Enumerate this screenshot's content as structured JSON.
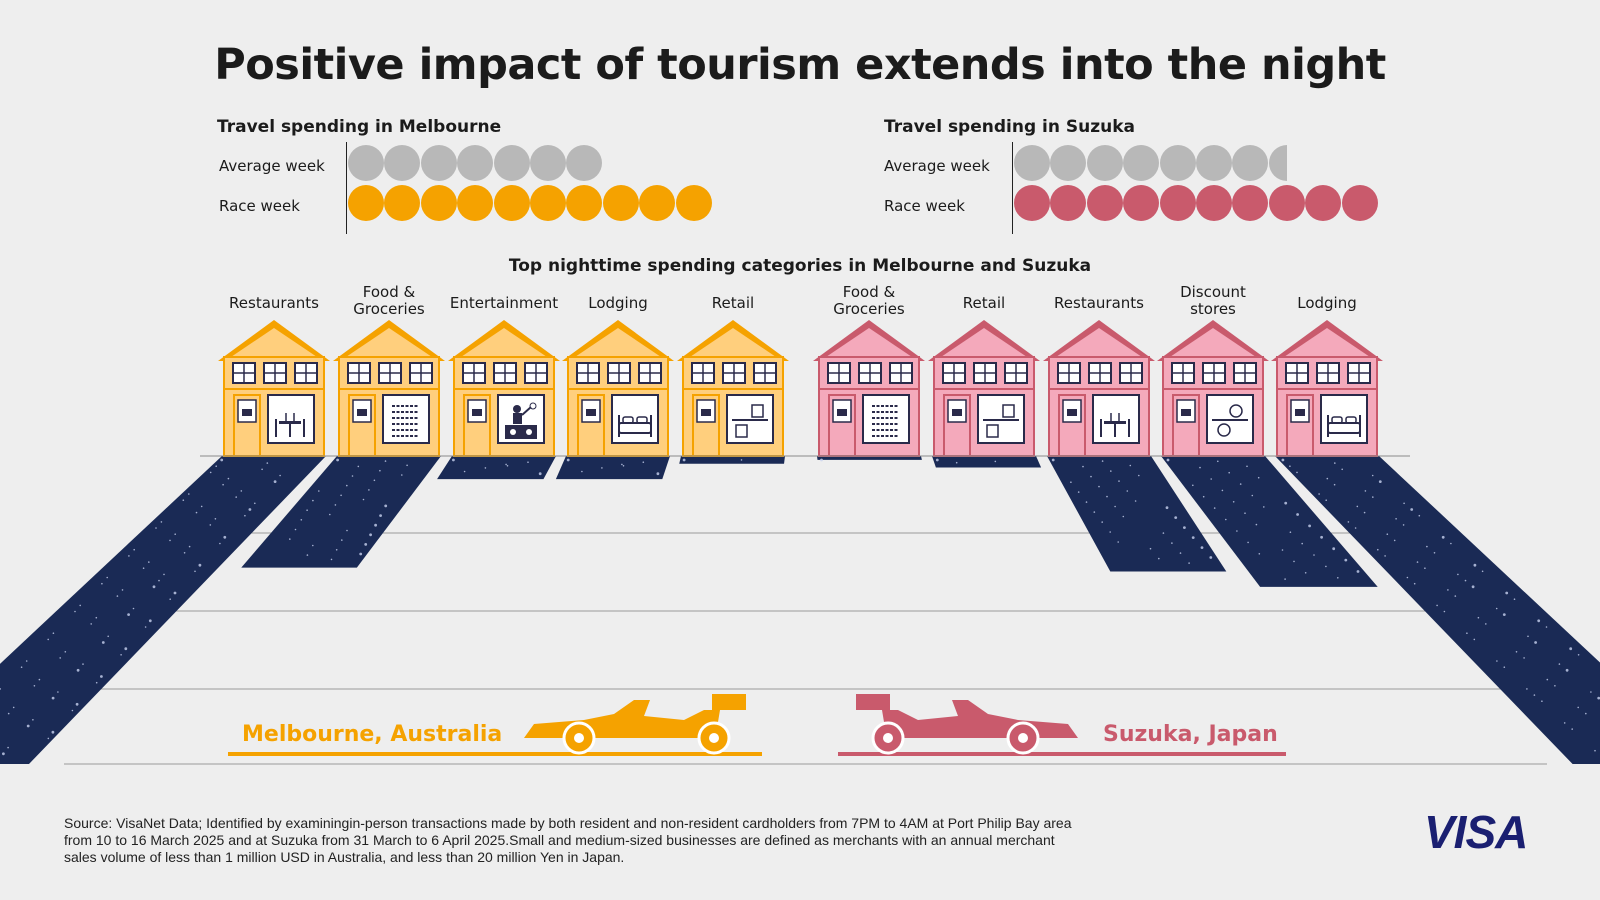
{
  "title": "Positive impact of tourism extends into the night",
  "colors": {
    "melbourne": "#f5a200",
    "suzuka": "#c95a6c",
    "average": "#b8b8b8",
    "night": "#1a2a55",
    "house_orange": "#ffcf7d",
    "house_pink": "#f4a9bb",
    "visa_blue": "#1a1f71"
  },
  "chart_data": [
    {
      "type": "pictogram",
      "title": "Travel spending in Melbourne",
      "categories": [
        "Average week",
        "Race week"
      ],
      "values": [
        7,
        10
      ],
      "unit": "relative spending icons"
    },
    {
      "type": "pictogram",
      "title": "Travel spending in Suzuka",
      "categories": [
        "Average week",
        "Race week"
      ],
      "values": [
        7.5,
        10
      ],
      "unit": "relative spending icons"
    },
    {
      "type": "bar",
      "title": "Top nighttime spending categories in Melbourne and Suzuka",
      "series": [
        {
          "name": "Melbourne, Australia",
          "categories": [
            "Restaurants",
            "Food & Groceries",
            "Entertainment",
            "Lodging",
            "Retail"
          ],
          "values": [
            4,
            1.45,
            0.3,
            0.3,
            0.1
          ],
          "icons": [
            "dining-table-icon",
            "grocery-shelf-icon",
            "dj-icon",
            "bed-icon",
            "shopping-bags-icon"
          ]
        },
        {
          "name": "Suzuka, Japan",
          "categories": [
            "Food & Groceries",
            "Retail",
            "Restaurants",
            "Discount stores",
            "Lodging"
          ],
          "values": [
            0.05,
            0.15,
            1.5,
            1.7,
            4
          ],
          "icons": [
            "grocery-shelf-icon",
            "shopping-bags-icon",
            "dining-table-icon",
            "discount-tags-icon",
            "bed-icon"
          ]
        }
      ],
      "labels": {
        "melbourne": [
          "Restaurants",
          "Food &\nGroceries",
          "Entertainment",
          "Lodging",
          "Retail"
        ],
        "suzuka": [
          "Food &\nGroceries",
          "Retail",
          "Restaurants",
          "Discount\nstores",
          "Lodging"
        ]
      },
      "grid": true
    }
  ],
  "cities": {
    "melbourne": "Melbourne, Australia",
    "suzuka": "Suzuka, Japan"
  },
  "source": "Source: VisaNet Data; Identified by examiningin-person transactions made by both resident and non-resident cardholders from 7PM to 4AM at Port Philip Bay area from 10 to 16 March 2025 and at Suzuka from 31 March to 6 April 2025.Small and medium-sized businesses are defined as merchants with an annual merchant sales volume of less than 1 million USD in Australia, and less than 20 million Yen in Japan.",
  "logo": "VISA"
}
